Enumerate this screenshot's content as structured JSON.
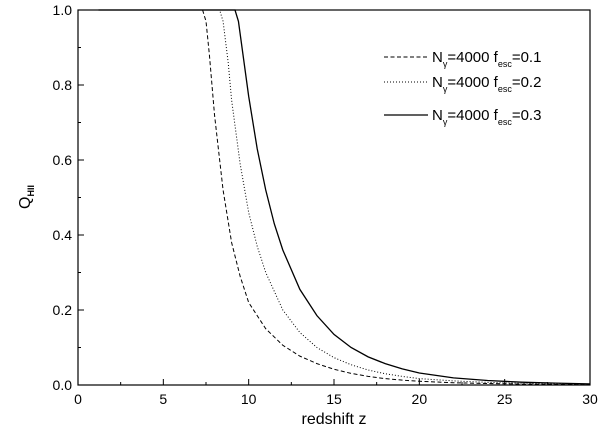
{
  "chart_data": {
    "type": "line",
    "xlabel": "redshift z",
    "ylabel": {
      "main": "Q",
      "sub": "HII"
    },
    "xlim": [
      0,
      30
    ],
    "ylim": [
      0,
      1.0
    ],
    "xticks": [
      0,
      5,
      10,
      15,
      20,
      25,
      30
    ],
    "xtick_labels": [
      "0",
      "5",
      "10",
      "15",
      "20",
      "25",
      "30"
    ],
    "yticks": [
      0.0,
      0.2,
      0.4,
      0.6,
      0.8,
      1.0
    ],
    "ytick_labels": [
      "0.0",
      "0.2",
      "0.4",
      "0.6",
      "0.8",
      "1.0"
    ],
    "grid": false,
    "legend_position": "top-right",
    "series": [
      {
        "label": {
          "n": "N",
          "n_sub": "γ",
          "mid": "=4000 f",
          "f_sub": "esc",
          "tail": "=0.1"
        },
        "style": "dashed",
        "points": [
          [
            1.2,
            1.0
          ],
          [
            7.3,
            1.0
          ],
          [
            7.5,
            0.97
          ],
          [
            7.7,
            0.88
          ],
          [
            8.0,
            0.72
          ],
          [
            8.5,
            0.52
          ],
          [
            9.0,
            0.38
          ],
          [
            9.5,
            0.29
          ],
          [
            10.0,
            0.22
          ],
          [
            11.0,
            0.15
          ],
          [
            12.0,
            0.106
          ],
          [
            13.0,
            0.077
          ],
          [
            14.0,
            0.057
          ],
          [
            15.0,
            0.042
          ],
          [
            16.0,
            0.031
          ],
          [
            17.0,
            0.023
          ],
          [
            18.0,
            0.017
          ],
          [
            19.0,
            0.013
          ],
          [
            20.0,
            0.01
          ],
          [
            22.0,
            0.006
          ],
          [
            24.0,
            0.004
          ],
          [
            26.0,
            0.0025
          ],
          [
            28.0,
            0.0015
          ],
          [
            30.0,
            0.001
          ]
        ]
      },
      {
        "label": {
          "n": "N",
          "n_sub": "γ",
          "mid": "=4000 f",
          "f_sub": "esc",
          "tail": "=0.2"
        },
        "style": "dotted",
        "points": [
          [
            1.2,
            1.0
          ],
          [
            8.3,
            1.0
          ],
          [
            8.5,
            0.97
          ],
          [
            8.8,
            0.86
          ],
          [
            9.0,
            0.76
          ],
          [
            9.5,
            0.59
          ],
          [
            10.0,
            0.46
          ],
          [
            10.5,
            0.37
          ],
          [
            11.0,
            0.3
          ],
          [
            12.0,
            0.2
          ],
          [
            13.0,
            0.14
          ],
          [
            14.0,
            0.1
          ],
          [
            15.0,
            0.073
          ],
          [
            16.0,
            0.054
          ],
          [
            17.0,
            0.04
          ],
          [
            18.0,
            0.03
          ],
          [
            19.0,
            0.023
          ],
          [
            20.0,
            0.017
          ],
          [
            22.0,
            0.011
          ],
          [
            24.0,
            0.007
          ],
          [
            26.0,
            0.0045
          ],
          [
            28.0,
            0.003
          ],
          [
            30.0,
            0.002
          ]
        ]
      },
      {
        "label": {
          "n": "N",
          "n_sub": "γ",
          "mid": "=4000 f",
          "f_sub": "esc",
          "tail": "=0.3"
        },
        "style": "solid",
        "points": [
          [
            1.2,
            1.0
          ],
          [
            9.2,
            1.0
          ],
          [
            9.4,
            0.97
          ],
          [
            9.7,
            0.87
          ],
          [
            10.0,
            0.77
          ],
          [
            10.5,
            0.63
          ],
          [
            11.0,
            0.52
          ],
          [
            11.5,
            0.43
          ],
          [
            12.0,
            0.36
          ],
          [
            13.0,
            0.255
          ],
          [
            14.0,
            0.185
          ],
          [
            15.0,
            0.135
          ],
          [
            16.0,
            0.1
          ],
          [
            17.0,
            0.075
          ],
          [
            18.0,
            0.057
          ],
          [
            19.0,
            0.043
          ],
          [
            20.0,
            0.032
          ],
          [
            22.0,
            0.019
          ],
          [
            24.0,
            0.012
          ],
          [
            26.0,
            0.0075
          ],
          [
            28.0,
            0.005
          ],
          [
            30.0,
            0.003
          ]
        ]
      }
    ]
  }
}
